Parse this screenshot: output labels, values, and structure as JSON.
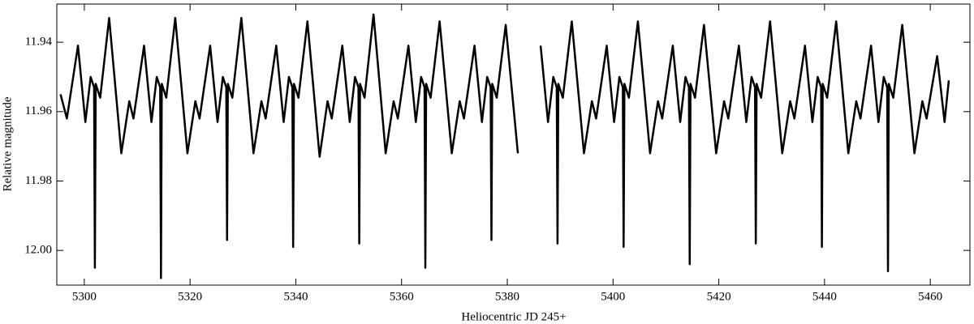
{
  "chart_data": {
    "type": "line",
    "xlabel": "Heliocentric JD 245+",
    "ylabel": "Relative magnitude",
    "xlim": [
      5294.8,
      5467.5
    ],
    "ylim": [
      11.929,
      12.01
    ],
    "y_inverted": true,
    "xticks": [
      5300,
      5320,
      5340,
      5360,
      5380,
      5400,
      5420,
      5440,
      5460
    ],
    "yticks": [
      11.94,
      11.96,
      11.98,
      {
        "value": 12,
        "label": "12.00"
      }
    ],
    "color": "#000000",
    "x": [
      5295.5,
      5296.7,
      5298.8,
      5300.2,
      5301.2,
      5301.85,
      5302,
      5302.15,
      5303,
      5304.7,
      5307,
      5308.5,
      5309.3,
      5311.3,
      5312.7,
      5313.7,
      5314.35,
      5314.5,
      5314.65,
      5315.5,
      5317.2,
      5319.5,
      5321,
      5321.8,
      5323.8,
      5325.2,
      5326.2,
      5326.85,
      5327,
      5327.15,
      5328,
      5329.7,
      5332,
      5333.5,
      5334.3,
      5336.3,
      5337.7,
      5338.7,
      5339.35,
      5339.5,
      5339.65,
      5340.5,
      5342.2,
      5344.5,
      5346,
      5346.8,
      5348.8,
      5350.2,
      5351.2,
      5351.85,
      5352,
      5352.15,
      5353,
      5354.7,
      5357,
      5358.5,
      5359.3,
      5361.3,
      5362.7,
      5363.7,
      5364.35,
      5364.5,
      5364.65,
      5365.5,
      5367.2,
      5369.5,
      5371,
      5371.8,
      5373.8,
      5375.2,
      5376.2,
      5376.85,
      5377,
      5377.15,
      5378,
      5379.7,
      5382,
      5384.3,
      5386.3,
      5387.7,
      5388.7,
      5389.35,
      5389.5,
      5389.65,
      5390.5,
      5392.2,
      5394.5,
      5396,
      5396.8,
      5398.8,
      5400.2,
      5401.2,
      5401.85,
      5402,
      5402.15,
      5403,
      5404.7,
      5407,
      5408.5,
      5409.3,
      5411.3,
      5412.7,
      5413.7,
      5414.35,
      5414.5,
      5414.65,
      5415.5,
      5417.2,
      5419.5,
      5421,
      5421.8,
      5423.8,
      5425.2,
      5426.2,
      5426.85,
      5427,
      5427.15,
      5428,
      5429.7,
      5432,
      5433.5,
      5434.3,
      5436.3,
      5437.7,
      5438.7,
      5439.35,
      5439.5,
      5439.65,
      5440.5,
      5442.2,
      5444.5,
      5446,
      5446.8,
      5448.8,
      5450.2,
      5451.2,
      5451.85,
      5452,
      5452.15,
      5453,
      5454.7,
      5457,
      5458.5,
      5459.3,
      5461.3,
      5462.7,
      5463.5
    ],
    "series": [
      {
        "values": [
          11.955,
          11.962,
          11.941,
          11.963,
          11.95,
          11.953,
          12.005,
          11.952,
          11.956,
          11.933,
          11.972,
          11.957,
          11.962,
          11.941,
          11.963,
          11.95,
          11.953,
          12.008,
          11.952,
          11.956,
          11.933,
          11.972,
          11.957,
          11.962,
          11.941,
          11.963,
          11.95,
          11.953,
          11.997,
          11.952,
          11.956,
          11.933,
          11.972,
          11.957,
          11.962,
          11.941,
          11.963,
          11.95,
          11.953,
          11.999,
          11.952,
          11.956,
          11.934,
          11.973,
          11.957,
          11.962,
          11.941,
          11.963,
          11.95,
          11.953,
          11.998,
          11.952,
          11.956,
          11.932,
          11.972,
          11.957,
          11.962,
          11.941,
          11.963,
          11.95,
          11.953,
          12.005,
          11.952,
          11.956,
          11.934,
          11.972,
          11.957,
          11.962,
          11.941,
          11.963,
          11.95,
          11.953,
          11.997,
          11.952,
          11.956,
          11.935,
          11.972,
          null,
          11.941,
          11.963,
          11.95,
          11.953,
          11.998,
          11.952,
          11.956,
          11.934,
          11.972,
          11.957,
          11.962,
          11.941,
          11.963,
          11.95,
          11.953,
          11.999,
          11.952,
          11.956,
          11.934,
          11.972,
          11.957,
          11.962,
          11.941,
          11.963,
          11.95,
          11.953,
          12.004,
          11.952,
          11.956,
          11.935,
          11.972,
          11.957,
          11.962,
          11.941,
          11.963,
          11.95,
          11.953,
          11.998,
          11.952,
          11.956,
          11.934,
          11.972,
          11.957,
          11.962,
          11.941,
          11.963,
          11.95,
          11.953,
          11.999,
          11.952,
          11.956,
          11.934,
          11.972,
          11.957,
          11.962,
          11.941,
          11.963,
          11.95,
          11.953,
          12.006,
          11.952,
          11.956,
          11.935,
          11.972,
          11.957,
          11.962,
          11.944,
          11.963,
          11.951
        ]
      }
    ]
  }
}
